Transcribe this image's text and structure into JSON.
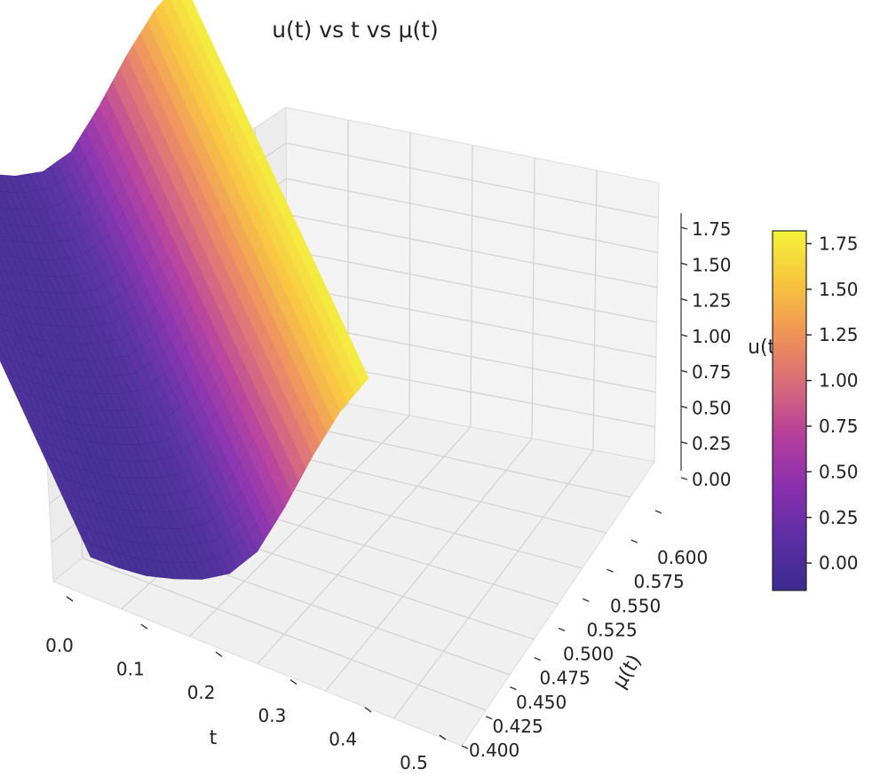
{
  "chart_data": {
    "type": "surface3d",
    "title": "u(t) vs t vs μ(t)",
    "xlabel": "t",
    "ylabel": "μ(t)",
    "zlabel": "u(t)",
    "colormap": "plasma",
    "grid": true,
    "colorbar": "right",
    "xlim": [
      0.0,
      0.5
    ],
    "ylim": [
      0.4,
      0.6
    ],
    "zlim": [
      -0.1,
      1.8
    ],
    "x_ticks": [
      "0.0",
      "0.1",
      "0.2",
      "0.3",
      "0.4",
      "0.5"
    ],
    "y_ticks": [
      "0.400",
      "0.425",
      "0.450",
      "0.475",
      "0.500",
      "0.525",
      "0.550",
      "0.575",
      "0.600"
    ],
    "z_ticks": [
      "0.00",
      "0.25",
      "0.50",
      "0.75",
      "1.00",
      "1.25",
      "1.50",
      "1.75"
    ],
    "colorbar_ticks": [
      "0.00",
      "0.25",
      "0.50",
      "0.75",
      "1.00",
      "1.25",
      "1.50",
      "1.75"
    ],
    "colorbar_range": [
      -0.15,
      1.82
    ],
    "colormap_stops": [
      "#3b2a8f",
      "#5b2ea3",
      "#8a2fae",
      "#b43e9c",
      "#d86a7a",
      "#ef9457",
      "#f9c53c",
      "#f3f23a"
    ],
    "t": [
      0.0,
      0.05,
      0.1,
      0.15,
      0.2,
      0.25,
      0.3,
      0.35,
      0.4,
      0.45,
      0.5
    ],
    "mu": [
      0.4,
      0.45,
      0.5,
      0.55,
      0.6
    ],
    "u": [
      [
        -0.06,
        -0.1,
        -0.12,
        -0.1,
        -0.06,
        0.03,
        0.25,
        0.65,
        1.1,
        1.5,
        1.8
      ],
      [
        -0.05,
        -0.09,
        -0.11,
        -0.09,
        -0.05,
        0.03,
        0.25,
        0.65,
        1.1,
        1.5,
        1.8
      ],
      [
        -0.04,
        -0.08,
        -0.1,
        -0.08,
        -0.04,
        0.04,
        0.25,
        0.65,
        1.1,
        1.5,
        1.8
      ],
      [
        -0.04,
        -0.07,
        -0.09,
        -0.07,
        -0.04,
        0.04,
        0.25,
        0.65,
        1.1,
        1.5,
        1.8
      ],
      [
        -0.03,
        -0.06,
        -0.08,
        -0.06,
        -0.03,
        0.05,
        0.25,
        0.65,
        1.1,
        1.5,
        1.8
      ]
    ]
  }
}
